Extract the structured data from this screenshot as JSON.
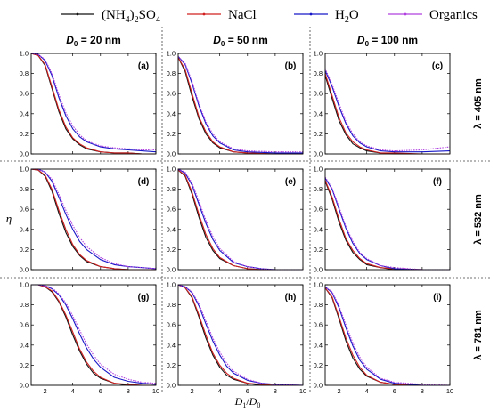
{
  "legend": [
    {
      "name": "(NH4)2SO4",
      "color": "#111111",
      "parts": [
        [
          "(NH",
          0
        ],
        [
          "4",
          1
        ],
        [
          ")",
          0
        ],
        [
          "2",
          1
        ],
        [
          "SO",
          0
        ],
        [
          "4",
          1
        ]
      ]
    },
    {
      "name": "NaCl",
      "color": "#d22020",
      "parts": [
        [
          "NaCl",
          0
        ]
      ]
    },
    {
      "name": "H2O",
      "color": "#1818c8",
      "parts": [
        [
          "H",
          0
        ],
        [
          "2",
          1
        ],
        [
          "O",
          0
        ]
      ]
    },
    {
      "name": "Organics",
      "color": "#b040e0",
      "parts": [
        [
          "Organics",
          0
        ]
      ]
    }
  ],
  "columns": [
    {
      "pre": "D",
      "sub": "0",
      "post": " = 20 nm"
    },
    {
      "pre": "D",
      "sub": "0",
      "post": " = 50 nm"
    },
    {
      "pre": "D",
      "sub": "0",
      "post": " = 100 nm"
    }
  ],
  "rows": [
    "λ = 405 nm",
    "λ = 532 nm",
    "λ = 781 nm"
  ],
  "ylabel": "η",
  "xlabel": {
    "a": "D",
    "a_sub": "1",
    "sep": "/",
    "b": "D",
    "b_sub": "0"
  },
  "chart_data": {
    "type": "line",
    "xlim": [
      1,
      10
    ],
    "ylim": [
      0,
      1.0
    ],
    "xticks": [
      2,
      4,
      6,
      8,
      10
    ],
    "yticks": [
      0.0,
      0.2,
      0.4,
      0.6,
      0.8,
      1.0
    ],
    "series_names": [
      "(NH4)2SO4",
      "NaCl",
      "H2O",
      "Organics"
    ],
    "panels": [
      {
        "label": "(a)",
        "x": [
          1,
          1.5,
          2,
          2.5,
          3,
          3.5,
          4,
          4.5,
          5,
          6,
          7,
          8,
          9,
          10
        ],
        "series": [
          {
            "name": "(NH4)2SO4",
            "values": [
              1.0,
              0.98,
              0.88,
              0.65,
              0.42,
              0.25,
              0.15,
              0.09,
              0.05,
              0.02,
              0.01,
              0.01,
              0.0,
              0.0
            ]
          },
          {
            "name": "NaCl",
            "values": [
              1.0,
              0.98,
              0.89,
              0.67,
              0.44,
              0.27,
              0.16,
              0.1,
              0.06,
              0.02,
              0.01,
              0.01,
              0.0,
              0.0
            ]
          },
          {
            "name": "H2O",
            "values": [
              1.0,
              0.99,
              0.93,
              0.78,
              0.56,
              0.38,
              0.25,
              0.17,
              0.12,
              0.07,
              0.05,
              0.04,
              0.03,
              0.02
            ]
          },
          {
            "name": "Organics",
            "values": [
              1.0,
              0.99,
              0.94,
              0.8,
              0.59,
              0.41,
              0.28,
              0.19,
              0.13,
              0.08,
              0.06,
              0.05,
              0.04,
              0.04
            ]
          }
        ]
      },
      {
        "label": "(b)",
        "x": [
          1,
          1.5,
          2,
          2.5,
          3,
          3.5,
          4,
          5,
          6,
          8,
          10
        ],
        "series": [
          {
            "name": "(NH4)2SO4",
            "values": [
              0.96,
              0.82,
              0.57,
              0.35,
              0.2,
              0.11,
              0.06,
              0.02,
              0.01,
              0.0,
              0.0
            ]
          },
          {
            "name": "NaCl",
            "values": [
              0.96,
              0.84,
              0.6,
              0.37,
              0.22,
              0.12,
              0.07,
              0.02,
              0.01,
              0.0,
              0.0
            ]
          },
          {
            "name": "H2O",
            "values": [
              0.97,
              0.89,
              0.7,
              0.48,
              0.3,
              0.18,
              0.11,
              0.04,
              0.02,
              0.01,
              0.01
            ]
          },
          {
            "name": "Organics",
            "values": [
              0.97,
              0.9,
              0.72,
              0.5,
              0.32,
              0.2,
              0.12,
              0.05,
              0.03,
              0.02,
              0.02
            ]
          }
        ]
      },
      {
        "label": "(c)",
        "x": [
          1,
          1.5,
          2,
          2.5,
          3,
          3.5,
          4,
          5,
          6,
          8,
          10
        ],
        "series": [
          {
            "name": "(NH4)2SO4",
            "values": [
              0.78,
              0.55,
              0.33,
              0.19,
              0.1,
              0.06,
              0.03,
              0.01,
              0.0,
              0.0,
              0.0
            ]
          },
          {
            "name": "NaCl",
            "values": [
              0.8,
              0.58,
              0.36,
              0.21,
              0.12,
              0.07,
              0.04,
              0.01,
              0.01,
              0.0,
              0.0
            ]
          },
          {
            "name": "H2O",
            "values": [
              0.83,
              0.67,
              0.47,
              0.3,
              0.18,
              0.11,
              0.07,
              0.03,
              0.02,
              0.02,
              0.03
            ]
          },
          {
            "name": "Organics",
            "values": [
              0.85,
              0.69,
              0.5,
              0.32,
              0.2,
              0.12,
              0.08,
              0.04,
              0.03,
              0.04,
              0.07
            ]
          }
        ]
      },
      {
        "label": "(d)",
        "x": [
          1,
          1.5,
          2,
          2.5,
          3,
          3.5,
          4,
          4.5,
          5,
          6,
          7,
          8,
          9,
          10
        ],
        "series": [
          {
            "name": "(NH4)2SO4",
            "values": [
              1.0,
              0.99,
              0.93,
              0.78,
              0.56,
              0.37,
              0.23,
              0.14,
              0.08,
              0.03,
              0.01,
              0.0,
              0.0,
              0.0
            ]
          },
          {
            "name": "NaCl",
            "values": [
              1.0,
              0.99,
              0.94,
              0.8,
              0.59,
              0.4,
              0.25,
              0.15,
              0.09,
              0.03,
              0.01,
              0.0,
              0.0,
              0.0
            ]
          },
          {
            "name": "H2O",
            "values": [
              1.0,
              1.0,
              0.97,
              0.88,
              0.72,
              0.55,
              0.4,
              0.28,
              0.2,
              0.1,
              0.05,
              0.03,
              0.02,
              0.01
            ]
          },
          {
            "name": "Organics",
            "values": [
              1.0,
              1.0,
              0.97,
              0.9,
              0.75,
              0.59,
              0.44,
              0.32,
              0.23,
              0.12,
              0.06,
              0.03,
              0.02,
              0.01
            ]
          }
        ]
      },
      {
        "label": "(e)",
        "x": [
          1,
          1.5,
          2,
          2.5,
          3,
          3.5,
          4,
          5,
          6,
          7,
          8,
          10
        ],
        "series": [
          {
            "name": "(NH4)2SO4",
            "values": [
              0.99,
              0.93,
              0.75,
              0.52,
              0.32,
              0.19,
              0.11,
              0.04,
              0.01,
              0.0,
              0.0,
              0.0
            ]
          },
          {
            "name": "NaCl",
            "values": [
              0.99,
              0.94,
              0.77,
              0.55,
              0.35,
              0.21,
              0.12,
              0.04,
              0.01,
              0.0,
              0.0,
              0.0
            ]
          },
          {
            "name": "H2O",
            "values": [
              1.0,
              0.96,
              0.84,
              0.65,
              0.46,
              0.3,
              0.19,
              0.07,
              0.03,
              0.01,
              0.0,
              0.0
            ]
          },
          {
            "name": "Organics",
            "values": [
              1.0,
              0.97,
              0.86,
              0.68,
              0.49,
              0.33,
              0.21,
              0.08,
              0.03,
              0.01,
              0.0,
              0.0
            ]
          }
        ]
      },
      {
        "label": "(f)",
        "x": [
          1,
          1.5,
          2,
          2.5,
          3,
          3.5,
          4,
          5,
          6,
          8,
          10
        ],
        "series": [
          {
            "name": "(NH4)2SO4",
            "values": [
              0.88,
              0.7,
              0.47,
              0.29,
              0.17,
              0.1,
              0.05,
              0.02,
              0.0,
              0.0,
              0.0
            ]
          },
          {
            "name": "NaCl",
            "values": [
              0.89,
              0.72,
              0.5,
              0.31,
              0.19,
              0.11,
              0.06,
              0.02,
              0.01,
              0.0,
              0.0
            ]
          },
          {
            "name": "H2O",
            "values": [
              0.91,
              0.8,
              0.6,
              0.41,
              0.26,
              0.16,
              0.1,
              0.04,
              0.01,
              0.0,
              0.0
            ]
          },
          {
            "name": "Organics",
            "values": [
              0.92,
              0.81,
              0.62,
              0.43,
              0.28,
              0.17,
              0.11,
              0.04,
              0.02,
              0.0,
              0.0
            ]
          }
        ]
      },
      {
        "label": "(g)",
        "x": [
          1,
          1.5,
          2,
          2.5,
          3,
          3.5,
          4,
          4.5,
          5,
          5.5,
          6,
          7,
          8,
          9,
          10
        ],
        "series": [
          {
            "name": "(NH4)2SO4",
            "values": [
              1.0,
              1.0,
              0.98,
              0.93,
              0.83,
              0.68,
              0.5,
              0.34,
              0.21,
              0.12,
              0.07,
              0.02,
              0.0,
              0.0,
              0.0
            ]
          },
          {
            "name": "NaCl",
            "values": [
              1.0,
              1.0,
              0.98,
              0.94,
              0.84,
              0.7,
              0.53,
              0.36,
              0.23,
              0.14,
              0.08,
              0.02,
              0.01,
              0.0,
              0.0
            ]
          },
          {
            "name": "H2O",
            "values": [
              1.0,
              1.0,
              0.99,
              0.96,
              0.9,
              0.8,
              0.66,
              0.51,
              0.37,
              0.26,
              0.18,
              0.08,
              0.04,
              0.02,
              0.01
            ]
          },
          {
            "name": "Organics",
            "values": [
              1.0,
              1.0,
              0.99,
              0.97,
              0.91,
              0.82,
              0.69,
              0.55,
              0.41,
              0.3,
              0.21,
              0.11,
              0.06,
              0.03,
              0.02
            ]
          }
        ]
      },
      {
        "label": "(h)",
        "x": [
          1,
          1.5,
          2,
          2.5,
          3,
          3.5,
          4,
          4.5,
          5,
          6,
          7,
          8,
          10
        ],
        "series": [
          {
            "name": "(NH4)2SO4",
            "values": [
              1.0,
              0.97,
              0.87,
              0.68,
              0.47,
              0.3,
              0.18,
              0.1,
              0.06,
              0.02,
              0.0,
              0.0,
              0.0
            ]
          },
          {
            "name": "NaCl",
            "values": [
              1.0,
              0.97,
              0.88,
              0.7,
              0.5,
              0.32,
              0.2,
              0.12,
              0.07,
              0.02,
              0.01,
              0.0,
              0.0
            ]
          },
          {
            "name": "H2O",
            "values": [
              1.0,
              0.98,
              0.92,
              0.79,
              0.61,
              0.44,
              0.3,
              0.19,
              0.12,
              0.05,
              0.02,
              0.01,
              0.0
            ]
          },
          {
            "name": "Organics",
            "values": [
              1.0,
              0.98,
              0.93,
              0.81,
              0.64,
              0.47,
              0.33,
              0.22,
              0.14,
              0.06,
              0.02,
              0.01,
              0.0
            ]
          }
        ]
      },
      {
        "label": "(i)",
        "x": [
          1,
          1.5,
          2,
          2.5,
          3,
          3.5,
          4,
          5,
          6,
          8,
          10
        ],
        "series": [
          {
            "name": "(NH4)2SO4",
            "values": [
              0.97,
              0.87,
              0.66,
              0.44,
              0.27,
              0.16,
              0.09,
              0.03,
              0.01,
              0.0,
              0.0
            ]
          },
          {
            "name": "NaCl",
            "values": [
              0.97,
              0.88,
              0.68,
              0.47,
              0.3,
              0.18,
              0.1,
              0.03,
              0.01,
              0.0,
              0.0
            ]
          },
          {
            "name": "H2O",
            "values": [
              0.98,
              0.92,
              0.77,
              0.57,
              0.39,
              0.25,
              0.16,
              0.06,
              0.02,
              0.0,
              0.0
            ]
          },
          {
            "name": "Organics",
            "values": [
              0.98,
              0.93,
              0.79,
              0.6,
              0.42,
              0.28,
              0.18,
              0.07,
              0.03,
              0.01,
              0.0
            ]
          }
        ]
      }
    ]
  }
}
